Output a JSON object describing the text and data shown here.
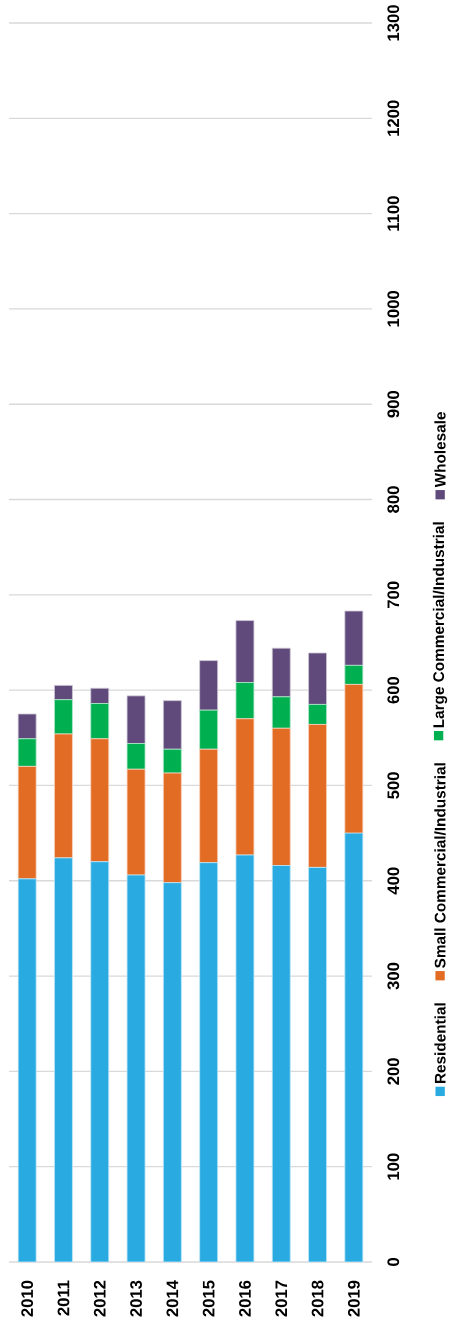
{
  "chart_data": {
    "type": "bar",
    "stacked": true,
    "categories": [
      "2010",
      "2011",
      "2012",
      "2013",
      "2014",
      "2015",
      "2016",
      "2017",
      "2018",
      "2019"
    ],
    "series": [
      {
        "name": "Residential",
        "color": "#29abe2",
        "values": [
          402,
          424,
          420,
          406,
          398,
          419,
          427,
          416,
          414,
          450
        ]
      },
      {
        "name": "Small Commercial/Industrial",
        "color": "#e36c25",
        "values": [
          118,
          130,
          129,
          111,
          115,
          119,
          143,
          144,
          150,
          156
        ]
      },
      {
        "name": "Large Commercial/Industrial",
        "color": "#00b050",
        "values": [
          29,
          36,
          37,
          27,
          25,
          41,
          38,
          33,
          21,
          20
        ]
      },
      {
        "name": "Wholesale",
        "color": "#604a7b",
        "values": [
          26,
          15,
          16,
          50,
          51,
          52,
          65,
          51,
          54,
          57
        ]
      }
    ],
    "ylim": [
      0,
      1300
    ],
    "yticks": [
      0,
      100,
      200,
      300,
      400,
      500,
      600,
      700,
      800,
      900,
      1000,
      1100,
      1200,
      1300
    ],
    "grid": "y",
    "legend": "right"
  }
}
